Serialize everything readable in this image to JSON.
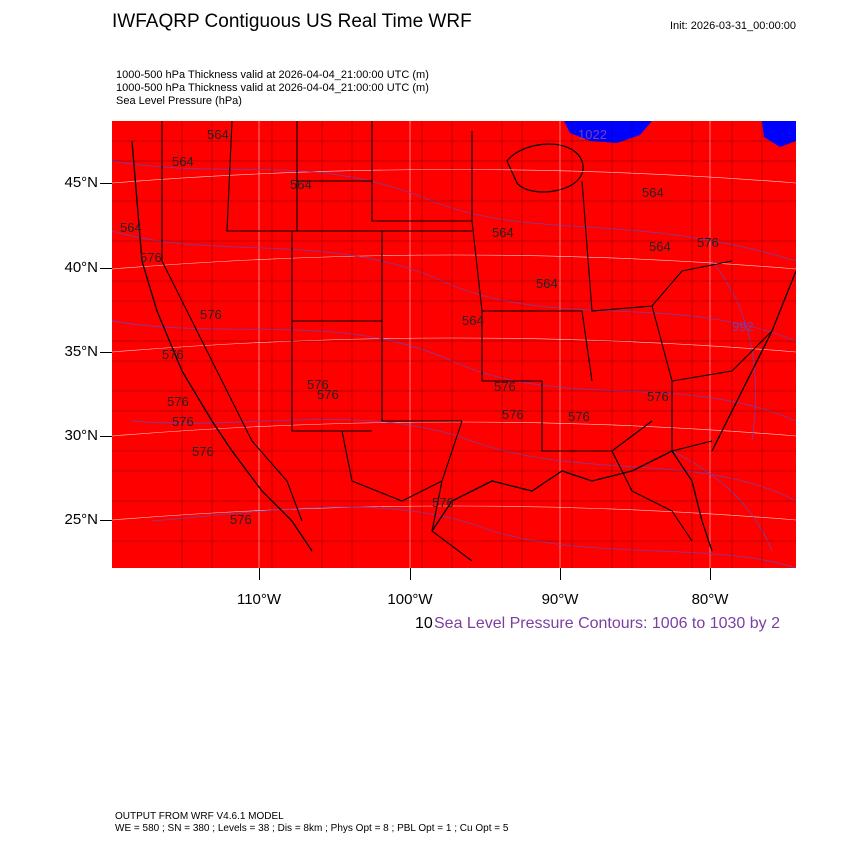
{
  "title": "IWFAQRP Contiguous US Real Time WRF",
  "init": "Init: 2026-03-31_00:00:00",
  "header_lines": [
    "1000-500 hPa Thickness valid at 2026-04-04_21:00:00 UTC   (m)",
    "1000-500 hPa Thickness valid at 2026-04-04_21:00:00 UTC   (m)",
    "Sea Level Pressure   (hPa)"
  ],
  "lat_labels": [
    "45°N",
    "40°N",
    "35°N",
    "30°N",
    "25°N"
  ],
  "lon_labels": [
    "110°W",
    "100°W",
    "90°W",
    "80°W"
  ],
  "thickness_labels": [
    "564",
    "564",
    "564",
    "564",
    "564",
    "564",
    "564",
    "564",
    "564",
    "576",
    "576",
    "576",
    "576",
    "576",
    "576",
    "576",
    "576",
    "576",
    "576",
    "576",
    "576",
    "576",
    "576",
    "576"
  ],
  "pressure_labels": [
    "1022",
    "992"
  ],
  "slp_number": "10",
  "slp_caption": "Sea Level Pressure Contours: 1006 to 1030 by 2",
  "footer_line1": "OUTPUT FROM WRF V4.6.1 MODEL",
  "footer_line2": "WE = 580 ; SN = 380 ; Levels = 38 ; Dis = 8km ; Phys Opt = 8 ; PBL Opt = 1 ; Cu Opt = 5",
  "colors": {
    "fill": "#ff0000",
    "water": "#0000ff",
    "slp_contour": "#7b3fa0",
    "boundaries": "#000000"
  }
}
